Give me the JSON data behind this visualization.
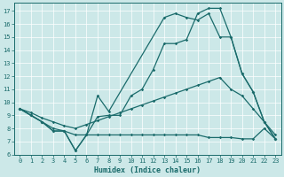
{
  "xlabel": "Humidex (Indice chaleur)",
  "bg_color": "#cce8e8",
  "line_color": "#1a6b6b",
  "grid_color": "#ffffff",
  "xlim": [
    -0.5,
    23.5
  ],
  "ylim": [
    6,
    17.6
  ],
  "xticks": [
    0,
    1,
    2,
    3,
    4,
    5,
    6,
    7,
    8,
    9,
    10,
    11,
    12,
    13,
    14,
    15,
    16,
    17,
    18,
    19,
    20,
    21,
    22,
    23
  ],
  "yticks": [
    6,
    7,
    8,
    9,
    10,
    11,
    12,
    13,
    14,
    15,
    16,
    17
  ],
  "line1_x": [
    0,
    1,
    2,
    3,
    4,
    5,
    6,
    7,
    8,
    9,
    10,
    11,
    12,
    13,
    14,
    15,
    16,
    17,
    18,
    19,
    20,
    21,
    22,
    23
  ],
  "line1_y": [
    9.5,
    9.0,
    8.5,
    7.8,
    7.8,
    6.3,
    7.5,
    8.9,
    9.0,
    9.0,
    10.5,
    11.0,
    12.5,
    14.5,
    14.5,
    14.8,
    16.8,
    17.2,
    17.2,
    15.0,
    12.2,
    10.8,
    8.5,
    7.2
  ],
  "line2_x": [
    0,
    1,
    2,
    3,
    4,
    5,
    6,
    7,
    8,
    13,
    14,
    15,
    16,
    17,
    18,
    19,
    20,
    21,
    22,
    23
  ],
  "line2_y": [
    9.5,
    9.0,
    8.5,
    7.8,
    7.8,
    6.3,
    7.5,
    10.5,
    9.3,
    16.5,
    16.8,
    16.5,
    16.3,
    16.8,
    15.0,
    15.0,
    12.2,
    10.8,
    8.5,
    7.2
  ],
  "line3_x": [
    0,
    1,
    2,
    3,
    4,
    5,
    6,
    7,
    8,
    9,
    10,
    11,
    12,
    13,
    14,
    15,
    16,
    17,
    18,
    19,
    20,
    21,
    22,
    23
  ],
  "line3_y": [
    9.5,
    9.2,
    8.8,
    8.5,
    8.2,
    8.0,
    8.3,
    8.6,
    8.9,
    9.2,
    9.5,
    9.8,
    10.1,
    10.4,
    10.7,
    11.0,
    11.3,
    11.6,
    11.9,
    11.0,
    10.5,
    9.5,
    8.5,
    7.5
  ],
  "line4_x": [
    0,
    1,
    2,
    3,
    4,
    5,
    6,
    7,
    8,
    9,
    10,
    11,
    12,
    13,
    14,
    15,
    16,
    17,
    18,
    19,
    20,
    21,
    22,
    23
  ],
  "line4_y": [
    9.5,
    9.0,
    8.5,
    8.0,
    7.8,
    7.5,
    7.5,
    7.5,
    7.5,
    7.5,
    7.5,
    7.5,
    7.5,
    7.5,
    7.5,
    7.5,
    7.5,
    7.3,
    7.3,
    7.3,
    7.2,
    7.2,
    8.0,
    7.2
  ]
}
